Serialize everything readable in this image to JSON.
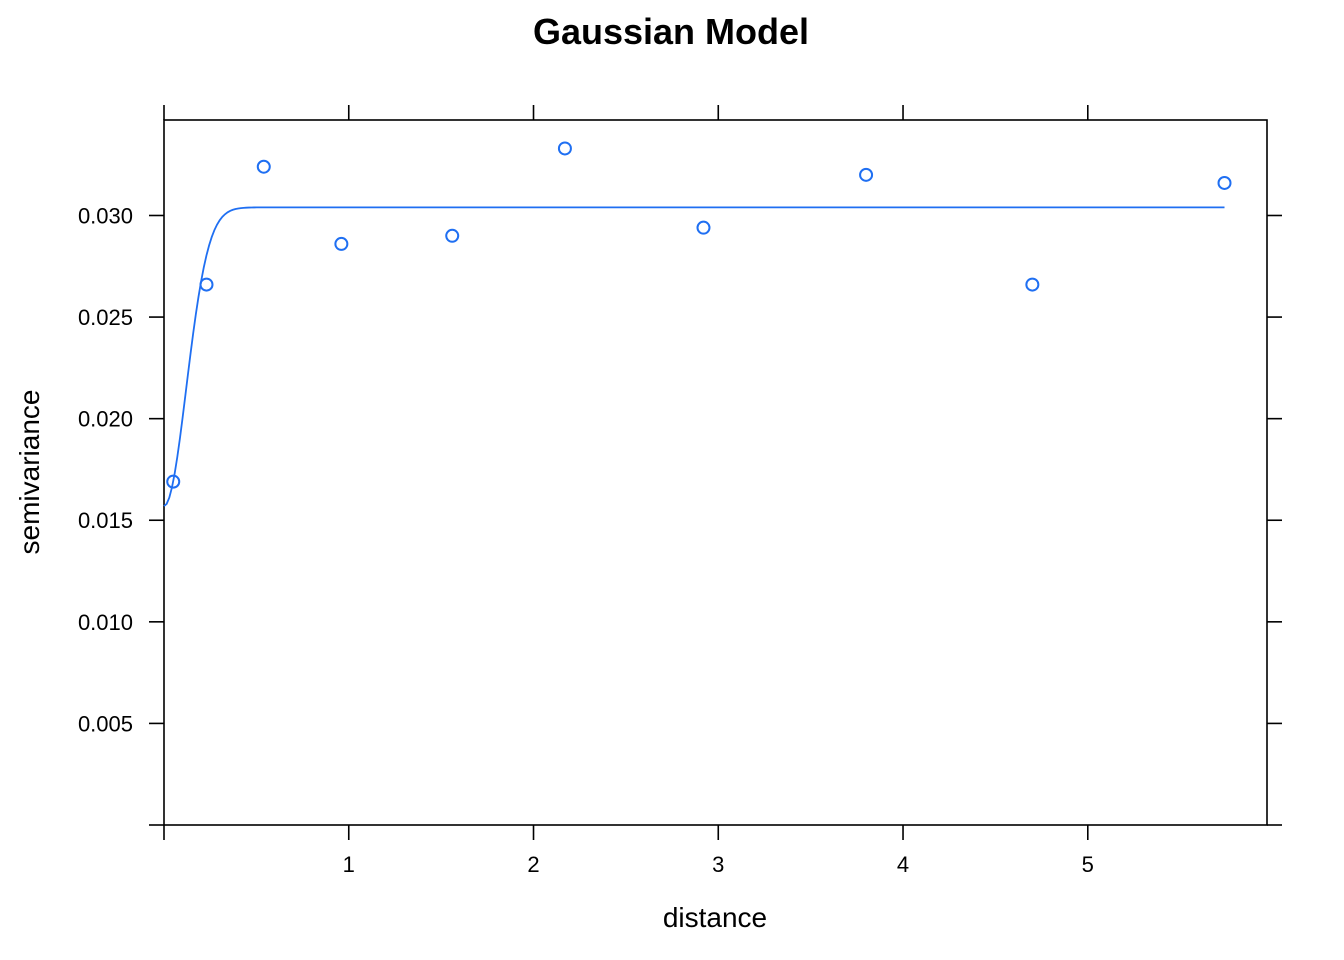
{
  "chart_data": {
    "type": "scatter",
    "title": "Gaussian Model",
    "xlabel": "distance",
    "ylabel": "semivariance",
    "xlim": [
      0,
      5.97
    ],
    "ylim": [
      0,
      0.0347
    ],
    "x_ticks": [
      1,
      2,
      3,
      4,
      5
    ],
    "x_tick_labels": [
      "1",
      "2",
      "3",
      "4",
      "5"
    ],
    "y_ticks": [
      0.005,
      0.01,
      0.015,
      0.02,
      0.025,
      0.03
    ],
    "y_tick_labels": [
      "0.005",
      "0.010",
      "0.015",
      "0.020",
      "0.025",
      "0.030"
    ],
    "grid": false,
    "points": {
      "x": [
        0.05,
        0.23,
        0.54,
        0.96,
        1.56,
        2.17,
        2.92,
        3.8,
        4.7,
        5.74
      ],
      "y": [
        0.0169,
        0.0266,
        0.0324,
        0.0286,
        0.029,
        0.0333,
        0.0294,
        0.032,
        0.0266,
        0.0316
      ]
    },
    "model_curve": {
      "type": "gaussian",
      "nugget": 0.0157,
      "psill": 0.0147,
      "range": 0.17,
      "x_max": 5.74
    },
    "colors": {
      "series": "#1f6ff2",
      "axis": "#000000"
    }
  }
}
